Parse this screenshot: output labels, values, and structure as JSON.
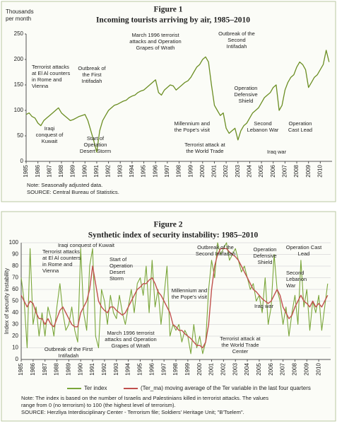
{
  "chart_data": [
    {
      "type": "line",
      "title": "Figure 1",
      "subtitle": "Incoming tourists arriving by air, 1985–2010",
      "y_label": [
        "Thousands",
        "per month"
      ],
      "color": "#6b8e23",
      "grid": false,
      "x": [
        1985,
        1985.25,
        1985.5,
        1985.75,
        1986,
        1986.25,
        1986.5,
        1986.75,
        1987,
        1987.25,
        1987.5,
        1987.75,
        1988,
        1988.25,
        1988.5,
        1988.75,
        1989,
        1989.25,
        1989.5,
        1989.75,
        1990,
        1990.25,
        1990.5,
        1990.75,
        1991,
        1991.25,
        1991.5,
        1991.75,
        1992,
        1992.25,
        1992.5,
        1992.75,
        1993,
        1993.25,
        1993.5,
        1993.75,
        1994,
        1994.25,
        1994.5,
        1994.75,
        1995,
        1995.25,
        1995.5,
        1995.75,
        1996,
        1996.25,
        1996.5,
        1996.75,
        1997,
        1997.25,
        1997.5,
        1997.75,
        1998,
        1998.25,
        1998.5,
        1998.75,
        1999,
        1999.25,
        1999.5,
        1999.75,
        2000,
        2000.25,
        2000.5,
        2000.75,
        2001,
        2001.25,
        2001.5,
        2001.75,
        2002,
        2002.25,
        2002.5,
        2002.75,
        2003,
        2003.25,
        2003.5,
        2003.75,
        2004,
        2004.25,
        2004.5,
        2004.75,
        2005,
        2005.25,
        2005.5,
        2005.75,
        2006,
        2006.25,
        2006.5,
        2006.75,
        2007,
        2007.25,
        2007.5,
        2007.75,
        2008,
        2008.25,
        2008.5,
        2008.75,
        2009,
        2009.25,
        2009.5,
        2009.75,
        2010,
        2010.25,
        2010.5,
        2010.75
      ],
      "values": [
        92,
        95,
        88,
        85,
        75,
        70,
        80,
        85,
        90,
        95,
        100,
        105,
        95,
        90,
        85,
        80,
        82,
        85,
        88,
        90,
        92,
        80,
        60,
        40,
        18,
        60,
        80,
        90,
        100,
        105,
        110,
        112,
        115,
        118,
        120,
        125,
        128,
        130,
        135,
        138,
        140,
        145,
        150,
        155,
        160,
        135,
        130,
        140,
        145,
        150,
        148,
        140,
        145,
        150,
        155,
        158,
        165,
        175,
        185,
        190,
        200,
        205,
        195,
        150,
        110,
        100,
        90,
        95,
        65,
        55,
        60,
        65,
        42,
        60,
        70,
        75,
        85,
        95,
        100,
        105,
        115,
        125,
        130,
        135,
        145,
        150,
        100,
        110,
        140,
        155,
        165,
        170,
        185,
        195,
        190,
        180,
        145,
        155,
        165,
        170,
        180,
        190,
        218,
        195
      ],
      "xlim": [
        1985,
        2011
      ],
      "xticks": [
        1985,
        1986,
        1987,
        1988,
        1989,
        1990,
        1991,
        1992,
        1993,
        1994,
        1995,
        1996,
        1997,
        1998,
        1999,
        2000,
        2001,
        2002,
        2003,
        2004,
        2005,
        2006,
        2007,
        2008,
        2009,
        2010
      ],
      "ylim": [
        0,
        250
      ],
      "yticks": [
        0,
        50,
        100,
        150,
        200,
        250
      ],
      "annotations": [
        [
          "Terrorist attacks",
          "at El Al counters",
          "in Rome and",
          "Vienna"
        ],
        [
          "Outbreak of",
          "the First",
          "Intifadah"
        ],
        [
          "Iraqi",
          "conquest of",
          "Kuwait"
        ],
        [
          "Start of",
          "Operation",
          "Desert Storm"
        ],
        [
          "March 1996 terrorist",
          "attacks and Operation",
          "Grapes of Wrath"
        ],
        [
          "Outbreak of the",
          "Second",
          "Intifadah"
        ],
        [
          "Operation",
          "Defensive",
          "Shield"
        ],
        [
          "Millennium and",
          "the Pope's visit"
        ],
        [
          "Terrorist attack at",
          "the World Trade"
        ],
        [
          "Second",
          "Lebanon War"
        ],
        [
          "Iraq war"
        ],
        [
          "Operation",
          "Cast Lead"
        ]
      ],
      "notes": [
        "Note: Seasonally adjusted data.",
        "SOURCE: Central Bureau of Statistics."
      ]
    },
    {
      "type": "line",
      "title": "Figure 2",
      "subtitle": "Synthetic index of security instability: 1985–2010",
      "y_label": [
        "Index of security instability"
      ],
      "grid": true,
      "x": [
        1985,
        1985.25,
        1985.5,
        1985.75,
        1986,
        1986.25,
        1986.5,
        1986.75,
        1987,
        1987.25,
        1987.5,
        1987.75,
        1988,
        1988.25,
        1988.5,
        1988.75,
        1989,
        1989.25,
        1989.5,
        1989.75,
        1990,
        1990.25,
        1990.5,
        1990.75,
        1991,
        1991.25,
        1991.5,
        1991.75,
        1992,
        1992.25,
        1992.5,
        1992.75,
        1993,
        1993.25,
        1993.5,
        1993.75,
        1994,
        1994.25,
        1994.5,
        1994.75,
        1995,
        1995.25,
        1995.5,
        1995.75,
        1996,
        1996.25,
        1996.5,
        1996.75,
        1997,
        1997.25,
        1997.5,
        1997.75,
        1998,
        1998.25,
        1998.5,
        1998.75,
        1999,
        1999.25,
        1999.5,
        1999.75,
        2000,
        2000.25,
        2000.5,
        2000.75,
        2001,
        2001.25,
        2001.5,
        2001.75,
        2002,
        2002.25,
        2002.5,
        2002.75,
        2003,
        2003.25,
        2003.5,
        2003.75,
        2004,
        2004.25,
        2004.5,
        2004.75,
        2005,
        2005.25,
        2005.5,
        2005.75,
        2006,
        2006.25,
        2006.5,
        2006.75,
        2007,
        2007.25,
        2007.5,
        2007.75,
        2008,
        2008.25,
        2008.5,
        2008.75,
        2009,
        2009.25,
        2009.5,
        2009.75,
        2010,
        2010.25,
        2010.5,
        2010.75
      ],
      "series": [
        {
          "name": "Ter index",
          "color": "#7aa63a",
          "values": [
            70,
            50,
            10,
            95,
            30,
            45,
            20,
            40,
            20,
            45,
            35,
            20,
            45,
            65,
            40,
            25,
            30,
            45,
            25,
            15,
            95,
            40,
            25,
            80,
            95,
            20,
            10,
            60,
            50,
            30,
            55,
            40,
            35,
            55,
            40,
            30,
            45,
            60,
            40,
            65,
            70,
            55,
            80,
            40,
            85,
            45,
            60,
            30,
            55,
            80,
            20,
            30,
            25,
            30,
            15,
            25,
            20,
            5,
            30,
            10,
            20,
            5,
            15,
            60,
            85,
            70,
            100,
            90,
            95,
            100,
            85,
            90,
            95,
            85,
            75,
            80,
            70,
            60,
            65,
            50,
            55,
            40,
            70,
            30,
            45,
            90,
            60,
            50,
            30,
            45,
            20,
            40,
            55,
            30,
            85,
            45,
            60,
            25,
            50,
            40,
            55,
            25,
            45,
            65
          ]
        },
        {
          "name": "(Ter_ma) moving average of the Ter variable in the last four quarters",
          "color": "#c0504d",
          "values": [
            55,
            50,
            45,
            50,
            48,
            40,
            35,
            35,
            30,
            35,
            30,
            28,
            35,
            42,
            45,
            40,
            35,
            30,
            28,
            28,
            40,
            45,
            50,
            60,
            80,
            65,
            50,
            45,
            42,
            40,
            45,
            45,
            42,
            40,
            38,
            40,
            45,
            50,
            55,
            60,
            62,
            65,
            65,
            68,
            70,
            65,
            58,
            55,
            50,
            45,
            40,
            30,
            28,
            25,
            25,
            22,
            20,
            18,
            15,
            12,
            12,
            10,
            15,
            30,
            60,
            80,
            90,
            95,
            95,
            95,
            92,
            90,
            88,
            85,
            80,
            75,
            70,
            65,
            60,
            58,
            55,
            52,
            50,
            48,
            50,
            55,
            60,
            55,
            45,
            40,
            35,
            38,
            45,
            50,
            55,
            50,
            48,
            45,
            50,
            45,
            48,
            45,
            50,
            55
          ]
        }
      ],
      "xlim": [
        1985,
        2011
      ],
      "xticks": [
        1985,
        1986,
        1987,
        1988,
        1989,
        1990,
        1991,
        1992,
        1993,
        1994,
        1995,
        1996,
        1997,
        1998,
        1999,
        2000,
        2001,
        2002,
        2003,
        2004,
        2005,
        2006,
        2007,
        2008,
        2009,
        2010
      ],
      "ylim": [
        0,
        100
      ],
      "yticks": [
        0,
        10,
        20,
        30,
        40,
        50,
        60,
        70,
        80,
        90,
        100
      ],
      "annotations": [
        [
          "Terrorist attacks",
          "at El Al counters",
          "in Rome and",
          "Vienna"
        ],
        [
          "Iraqi conquest of Kuwait"
        ],
        [
          "Start of",
          "Operation",
          "Desert",
          "Storm"
        ],
        [
          "Outbreak of the First",
          "Intifadah"
        ],
        [
          "March 1996 terrorist",
          "attacks and Operation",
          "Grapes of Wrath"
        ],
        [
          "Millennium and",
          "the Pope's visit"
        ],
        [
          "Outbreak of the",
          "Second Intifadah"
        ],
        [
          "Operation",
          "Defensive",
          "Shield"
        ],
        [
          "Iraq war"
        ],
        [
          "Terrorist attack at",
          "the World Trade",
          "Center"
        ],
        [
          "Operation Cast",
          "Lead"
        ],
        [
          "Second",
          "Lebanon",
          "War"
        ]
      ],
      "notes": [
        "Note: The index is based on the number of Israelis and Palestinians killed in terrorist attacks.  The values",
        "range from 0 (no terrorism) to 100 (the highest level of terrorism).",
        "SOURCE: Herzliya Interdisciplinary Center - Terrorism file; Soldiers' Heritage Unit; \"B'Tselem\"."
      ]
    }
  ]
}
